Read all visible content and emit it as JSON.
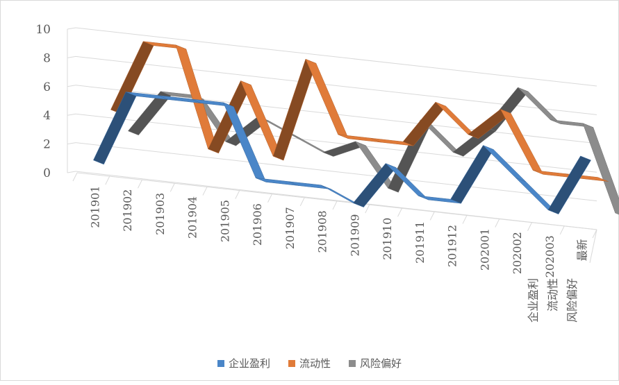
{
  "chart_data": {
    "type": "line",
    "variant": "3d-ribbon",
    "title": "",
    "xlabel": "",
    "ylabel": "",
    "ylim": [
      0,
      10
    ],
    "yticks": [
      0,
      2,
      4,
      6,
      8,
      10
    ],
    "grid": true,
    "legend_position": "bottom",
    "categories": [
      "201901",
      "201902",
      "201903",
      "201904",
      "201905",
      "201906",
      "201907",
      "201908",
      "201909",
      "201910",
      "201911",
      "201912",
      "202001",
      "202002",
      "202003",
      "最新"
    ],
    "series": [
      {
        "name": "企业盈利",
        "color": "#4a86c8",
        "values": [
          1,
          6,
          6,
          6,
          6,
          1,
          1,
          1,
          0,
          3,
          1,
          1,
          5,
          3,
          1,
          5
        ]
      },
      {
        "name": "流动性",
        "color": "#e07b39",
        "values": [
          5,
          10,
          10,
          3,
          8,
          3,
          10,
          5,
          5,
          5,
          8,
          6,
          8,
          4,
          4,
          4
        ]
      },
      {
        "name": "风险偏好",
        "color": "#8c8c8c",
        "values": [
          4,
          7,
          7,
          4,
          6,
          5,
          4,
          5,
          2,
          7,
          5,
          7,
          10,
          8,
          8,
          2
        ]
      }
    ]
  }
}
